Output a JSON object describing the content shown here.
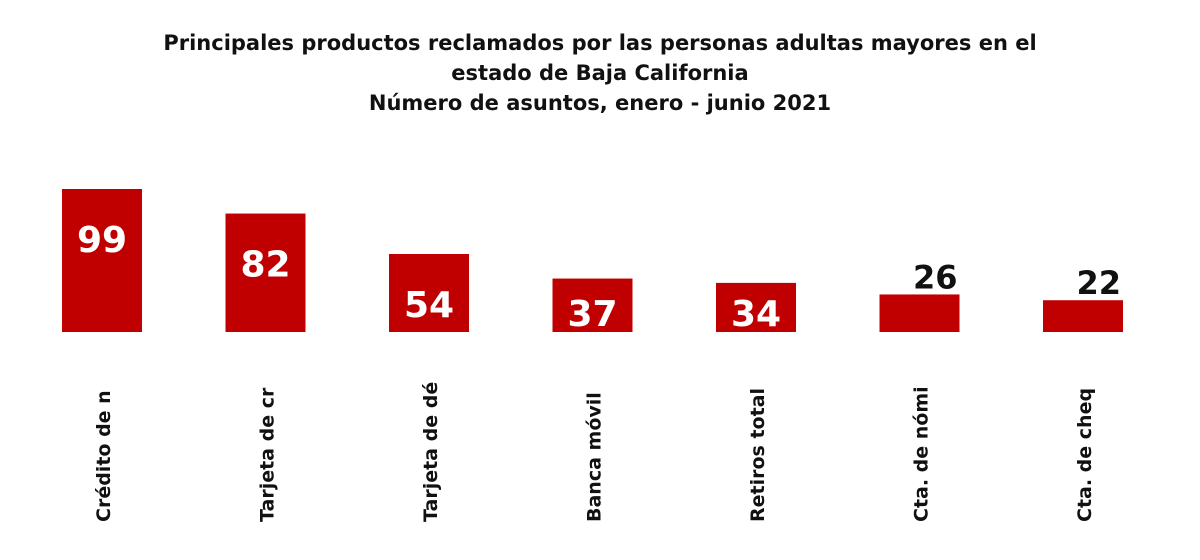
{
  "chart_data": {
    "type": "bar",
    "title_lines": [
      "Principales productos reclamados por las personas adultas mayores en el",
      "estado de Baja California",
      "Número de asuntos, enero - junio 2021"
    ],
    "categories": [
      "Crédito de n",
      "Tarjeta de cr",
      "Tarjeta de dé",
      "Banca móvil",
      "Retiros total",
      "Cta. de nómi",
      "Cta. de cheq"
    ],
    "values": [
      99,
      82,
      54,
      37,
      34,
      26,
      22
    ],
    "xlabel": "",
    "ylabel": "",
    "ylim": [
      0,
      99
    ],
    "grid": false,
    "legend": "none",
    "bar_color": "#c00000",
    "inside_label_color": "#ffffff",
    "outside_label_color": "#111111"
  }
}
